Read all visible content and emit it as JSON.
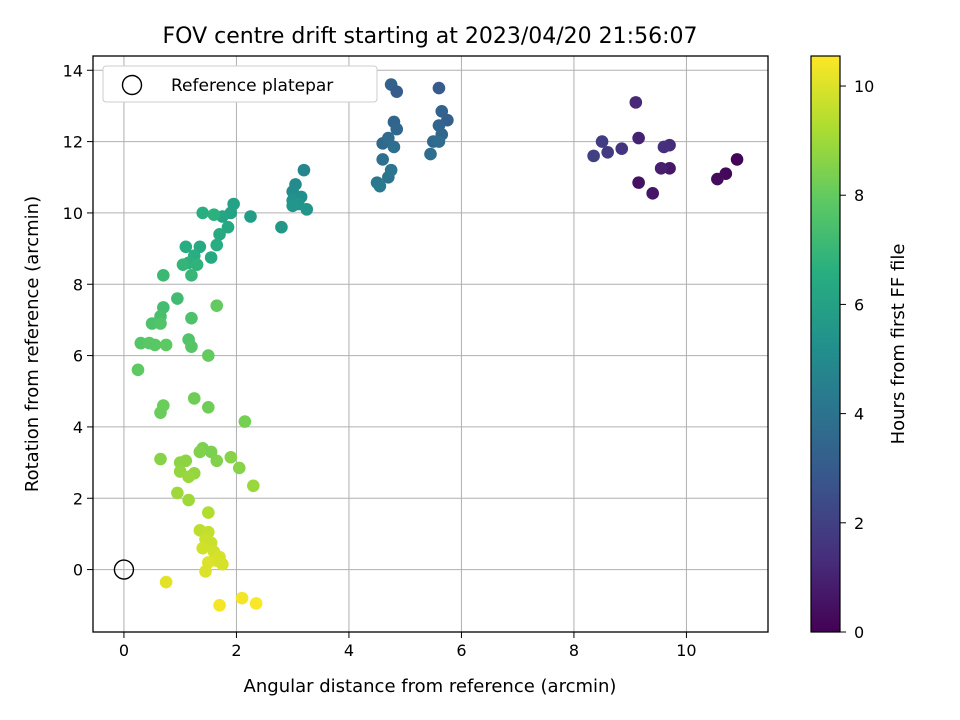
{
  "chart_data": {
    "type": "scatter",
    "title": "FOV centre drift starting at 2023/04/20 21:56:07",
    "xlabel": "Angular distance from reference (arcmin)",
    "ylabel": "Rotation from reference (arcmin)",
    "xlim": [
      -0.55,
      11.45
    ],
    "ylim": [
      -1.75,
      14.4
    ],
    "xticks": [
      0,
      2,
      4,
      6,
      8,
      10
    ],
    "yticks": [
      0,
      2,
      4,
      6,
      8,
      10,
      12,
      14
    ],
    "grid": true,
    "legend": {
      "placement": "top-left",
      "entries": [
        "Reference platepar"
      ]
    },
    "reference_point": {
      "x": 0,
      "y": 0
    },
    "colorbar": {
      "label": "Hours from first FF file",
      "range": [
        0,
        10.55
      ],
      "ticks": [
        0,
        2,
        4,
        6,
        8,
        10
      ],
      "colormap": "viridis"
    },
    "points": [
      {
        "x": 10.9,
        "y": 11.5,
        "h": 0.1
      },
      {
        "x": 10.7,
        "y": 11.1,
        "h": 0.2
      },
      {
        "x": 10.55,
        "y": 10.95,
        "h": 0.3
      },
      {
        "x": 9.15,
        "y": 10.85,
        "h": 0.5
      },
      {
        "x": 9.4,
        "y": 10.55,
        "h": 0.6
      },
      {
        "x": 9.7,
        "y": 11.25,
        "h": 0.7
      },
      {
        "x": 9.55,
        "y": 11.25,
        "h": 0.9
      },
      {
        "x": 9.15,
        "y": 12.1,
        "h": 1.0
      },
      {
        "x": 9.1,
        "y": 13.1,
        "h": 1.2
      },
      {
        "x": 9.7,
        "y": 11.9,
        "h": 1.3
      },
      {
        "x": 9.6,
        "y": 11.85,
        "h": 1.4
      },
      {
        "x": 8.85,
        "y": 11.8,
        "h": 1.6
      },
      {
        "x": 8.6,
        "y": 11.7,
        "h": 1.8
      },
      {
        "x": 8.5,
        "y": 12.0,
        "h": 1.9
      },
      {
        "x": 8.35,
        "y": 11.6,
        "h": 2.0
      },
      {
        "x": 5.6,
        "y": 13.5,
        "h": 3.0
      },
      {
        "x": 4.75,
        "y": 13.6,
        "h": 3.3
      },
      {
        "x": 4.85,
        "y": 13.4,
        "h": 3.1
      },
      {
        "x": 5.75,
        "y": 12.6,
        "h": 3.2
      },
      {
        "x": 5.65,
        "y": 12.85,
        "h": 3.3
      },
      {
        "x": 5.6,
        "y": 12.45,
        "h": 3.4
      },
      {
        "x": 5.65,
        "y": 12.2,
        "h": 3.5
      },
      {
        "x": 5.5,
        "y": 12.0,
        "h": 3.6
      },
      {
        "x": 5.6,
        "y": 12.0,
        "h": 3.7
      },
      {
        "x": 5.45,
        "y": 11.65,
        "h": 3.8
      },
      {
        "x": 4.8,
        "y": 12.55,
        "h": 3.4
      },
      {
        "x": 4.85,
        "y": 12.35,
        "h": 3.5
      },
      {
        "x": 4.6,
        "y": 11.95,
        "h": 3.6
      },
      {
        "x": 4.7,
        "y": 12.1,
        "h": 3.7
      },
      {
        "x": 4.8,
        "y": 11.85,
        "h": 3.8
      },
      {
        "x": 4.6,
        "y": 11.5,
        "h": 3.9
      },
      {
        "x": 4.7,
        "y": 11.0,
        "h": 4.0
      },
      {
        "x": 4.75,
        "y": 11.2,
        "h": 4.1
      },
      {
        "x": 4.5,
        "y": 10.85,
        "h": 4.2
      },
      {
        "x": 4.55,
        "y": 10.75,
        "h": 4.3
      },
      {
        "x": 3.2,
        "y": 11.2,
        "h": 4.8
      },
      {
        "x": 3.05,
        "y": 10.8,
        "h": 5.0
      },
      {
        "x": 3.0,
        "y": 10.6,
        "h": 5.1
      },
      {
        "x": 3.15,
        "y": 10.45,
        "h": 5.2
      },
      {
        "x": 3.0,
        "y": 10.35,
        "h": 5.3
      },
      {
        "x": 3.1,
        "y": 10.25,
        "h": 5.4
      },
      {
        "x": 3.0,
        "y": 10.2,
        "h": 5.5
      },
      {
        "x": 3.25,
        "y": 10.1,
        "h": 5.5
      },
      {
        "x": 2.8,
        "y": 9.6,
        "h": 5.6
      },
      {
        "x": 2.25,
        "y": 9.9,
        "h": 5.8
      },
      {
        "x": 1.95,
        "y": 10.25,
        "h": 6.0
      },
      {
        "x": 1.9,
        "y": 10.0,
        "h": 6.1
      },
      {
        "x": 1.75,
        "y": 9.9,
        "h": 6.2
      },
      {
        "x": 1.85,
        "y": 9.6,
        "h": 6.3
      },
      {
        "x": 1.7,
        "y": 9.4,
        "h": 6.4
      },
      {
        "x": 1.65,
        "y": 9.1,
        "h": 6.5
      },
      {
        "x": 1.4,
        "y": 10.0,
        "h": 6.6
      },
      {
        "x": 1.6,
        "y": 9.95,
        "h": 6.7
      },
      {
        "x": 1.55,
        "y": 8.75,
        "h": 6.3
      },
      {
        "x": 1.35,
        "y": 9.05,
        "h": 6.4
      },
      {
        "x": 1.1,
        "y": 9.05,
        "h": 6.5
      },
      {
        "x": 1.25,
        "y": 8.8,
        "h": 6.6
      },
      {
        "x": 1.15,
        "y": 8.6,
        "h": 6.7
      },
      {
        "x": 1.3,
        "y": 8.55,
        "h": 6.8
      },
      {
        "x": 1.05,
        "y": 8.55,
        "h": 6.9
      },
      {
        "x": 1.2,
        "y": 8.25,
        "h": 7.0
      },
      {
        "x": 0.7,
        "y": 8.25,
        "h": 7.1
      },
      {
        "x": 0.95,
        "y": 7.6,
        "h": 7.2
      },
      {
        "x": 0.7,
        "y": 7.35,
        "h": 7.3
      },
      {
        "x": 0.65,
        "y": 7.1,
        "h": 7.4
      },
      {
        "x": 1.2,
        "y": 7.05,
        "h": 7.5
      },
      {
        "x": 0.5,
        "y": 6.9,
        "h": 7.5
      },
      {
        "x": 0.65,
        "y": 6.9,
        "h": 7.6
      },
      {
        "x": 1.15,
        "y": 6.45,
        "h": 7.6
      },
      {
        "x": 1.2,
        "y": 6.25,
        "h": 7.7
      },
      {
        "x": 0.3,
        "y": 6.35,
        "h": 7.7
      },
      {
        "x": 0.45,
        "y": 6.35,
        "h": 7.8
      },
      {
        "x": 0.55,
        "y": 6.3,
        "h": 7.8
      },
      {
        "x": 0.75,
        "y": 6.3,
        "h": 7.9
      },
      {
        "x": 0.25,
        "y": 5.6,
        "h": 7.9
      },
      {
        "x": 1.5,
        "y": 6.0,
        "h": 8.0
      },
      {
        "x": 1.65,
        "y": 7.4,
        "h": 8.0
      },
      {
        "x": 0.7,
        "y": 4.6,
        "h": 8.1
      },
      {
        "x": 0.65,
        "y": 4.4,
        "h": 8.1
      },
      {
        "x": 1.25,
        "y": 4.8,
        "h": 8.2
      },
      {
        "x": 1.5,
        "y": 4.55,
        "h": 8.2
      },
      {
        "x": 2.15,
        "y": 4.15,
        "h": 8.3
      },
      {
        "x": 1.4,
        "y": 3.4,
        "h": 8.4
      },
      {
        "x": 1.55,
        "y": 3.3,
        "h": 8.4
      },
      {
        "x": 1.35,
        "y": 3.3,
        "h": 8.5
      },
      {
        "x": 1.65,
        "y": 3.05,
        "h": 8.5
      },
      {
        "x": 1.9,
        "y": 3.15,
        "h": 8.6
      },
      {
        "x": 2.05,
        "y": 2.85,
        "h": 8.6
      },
      {
        "x": 0.65,
        "y": 3.1,
        "h": 8.6
      },
      {
        "x": 1.0,
        "y": 3.0,
        "h": 8.7
      },
      {
        "x": 1.1,
        "y": 3.05,
        "h": 8.7
      },
      {
        "x": 1.0,
        "y": 2.75,
        "h": 8.8
      },
      {
        "x": 1.25,
        "y": 2.7,
        "h": 8.8
      },
      {
        "x": 1.15,
        "y": 2.6,
        "h": 8.9
      },
      {
        "x": 2.3,
        "y": 2.35,
        "h": 8.9
      },
      {
        "x": 0.95,
        "y": 2.15,
        "h": 9.0
      },
      {
        "x": 1.15,
        "y": 1.95,
        "h": 9.0
      },
      {
        "x": 1.5,
        "y": 1.6,
        "h": 9.3
      },
      {
        "x": 1.35,
        "y": 1.1,
        "h": 9.5
      },
      {
        "x": 1.5,
        "y": 1.05,
        "h": 9.6
      },
      {
        "x": 1.45,
        "y": 0.85,
        "h": 9.7
      },
      {
        "x": 1.55,
        "y": 0.75,
        "h": 9.7
      },
      {
        "x": 1.4,
        "y": 0.6,
        "h": 9.8
      },
      {
        "x": 1.6,
        "y": 0.5,
        "h": 9.8
      },
      {
        "x": 1.7,
        "y": 0.35,
        "h": 9.9
      },
      {
        "x": 1.75,
        "y": 0.15,
        "h": 9.9
      },
      {
        "x": 1.65,
        "y": 0.25,
        "h": 9.9
      },
      {
        "x": 1.5,
        "y": 0.2,
        "h": 10.0
      },
      {
        "x": 1.45,
        "y": -0.05,
        "h": 10.0
      },
      {
        "x": 0.75,
        "y": -0.35,
        "h": 10.1
      },
      {
        "x": 1.7,
        "y": -1.0,
        "h": 10.4
      },
      {
        "x": 2.1,
        "y": -0.8,
        "h": 10.4
      },
      {
        "x": 2.35,
        "y": -0.95,
        "h": 10.5
      }
    ]
  }
}
